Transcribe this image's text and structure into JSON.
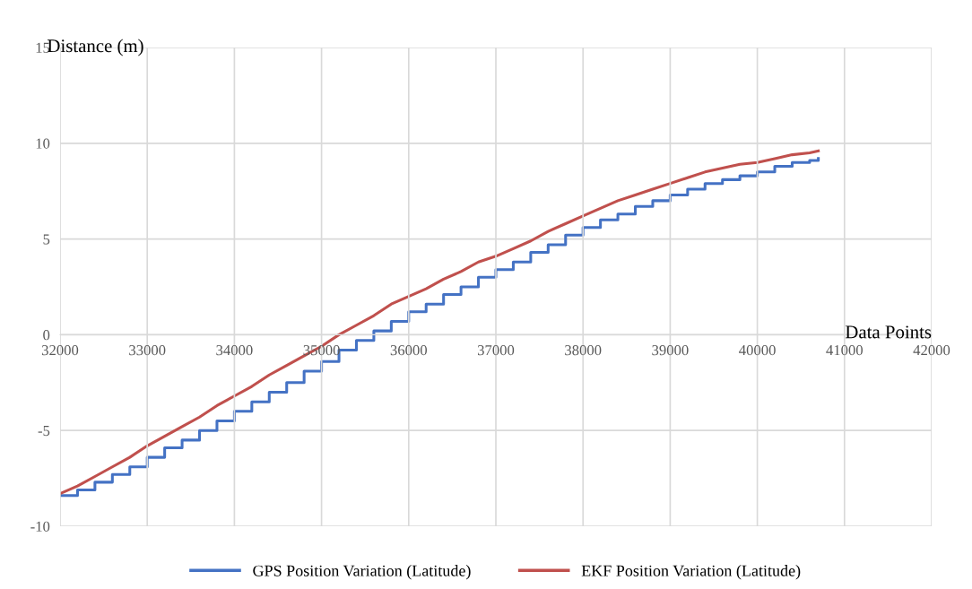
{
  "chart_data": {
    "type": "line",
    "xlabel": "Data Points",
    "ylabel": "Distance (m)",
    "xlim": [
      32000,
      42000
    ],
    "xticks": [
      32000,
      33000,
      34000,
      35000,
      36000,
      37000,
      38000,
      39000,
      40000,
      41000,
      42000
    ],
    "ylim": [
      -10,
      15
    ],
    "yticks": [
      -10,
      -5,
      0,
      5,
      10,
      15
    ],
    "grid": true,
    "legend": "bottom",
    "marker": "none",
    "line_style": "solid",
    "x": [
      32000,
      32200,
      32400,
      32600,
      32800,
      33000,
      33200,
      33400,
      33600,
      33800,
      34000,
      34200,
      34400,
      34600,
      34800,
      35000,
      35200,
      35400,
      35600,
      35800,
      36000,
      36200,
      36400,
      36600,
      36800,
      37000,
      37200,
      37400,
      37600,
      37800,
      38000,
      38200,
      38400,
      38600,
      38800,
      39000,
      39200,
      39400,
      39600,
      39800,
      40000,
      40200,
      40400,
      40600,
      40700
    ],
    "series": [
      {
        "name": "GPS Position Variation (Latitude)",
        "type": "step",
        "color": "#4472c4",
        "values": [
          -8.4,
          -8.1,
          -7.7,
          -7.3,
          -6.9,
          -6.4,
          -5.9,
          -5.5,
          -5.0,
          -4.5,
          -4.0,
          -3.5,
          -3.0,
          -2.5,
          -1.9,
          -1.4,
          -0.8,
          -0.3,
          0.2,
          0.7,
          1.2,
          1.6,
          2.1,
          2.5,
          3.0,
          3.4,
          3.8,
          4.3,
          4.7,
          5.2,
          5.6,
          6.0,
          6.3,
          6.7,
          7.0,
          7.3,
          7.6,
          7.9,
          8.1,
          8.3,
          8.5,
          8.8,
          9.0,
          9.1,
          9.2
        ]
      },
      {
        "name": "EKF Position Variation (Latitude)",
        "color": "#c0504d",
        "values": [
          -8.3,
          -7.9,
          -7.4,
          -6.9,
          -6.4,
          -5.8,
          -5.3,
          -4.8,
          -4.3,
          -3.7,
          -3.2,
          -2.7,
          -2.1,
          -1.6,
          -1.1,
          -0.6,
          0.0,
          0.5,
          1.0,
          1.6,
          2.0,
          2.4,
          2.9,
          3.3,
          3.8,
          4.1,
          4.5,
          4.9,
          5.4,
          5.8,
          6.2,
          6.6,
          7.0,
          7.3,
          7.6,
          7.9,
          8.2,
          8.5,
          8.7,
          8.9,
          9.0,
          9.2,
          9.4,
          9.5,
          9.6
        ]
      }
    ]
  }
}
